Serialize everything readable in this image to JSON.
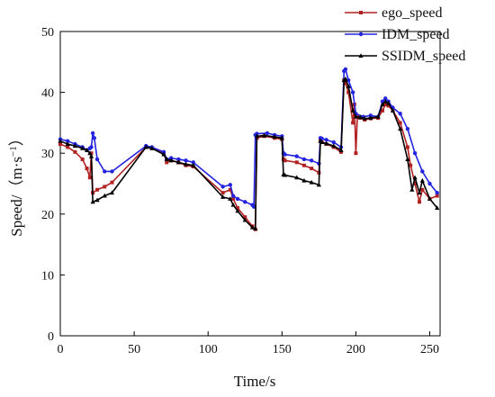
{
  "chart_data": {
    "type": "line",
    "xlabel": "Time/s",
    "ylabel_main": "Speed/（m·s",
    "ylabel_sup": "−1",
    "ylabel_close": "）",
    "xlim": [
      0,
      257
    ],
    "ylim": [
      0,
      50
    ],
    "xticks": [
      0,
      50,
      100,
      150,
      200,
      250
    ],
    "yticks": [
      0,
      10,
      20,
      30,
      40,
      50
    ],
    "legend_position": "top-right",
    "series": [
      {
        "name": "ego_speed",
        "color": "#b22222",
        "marker": "square",
        "x": [
          0,
          5,
          10,
          15,
          18,
          20,
          21,
          22,
          25,
          30,
          35,
          58,
          62,
          70,
          72,
          75,
          80,
          85,
          90,
          110,
          115,
          117,
          120,
          125,
          130,
          132,
          133,
          138,
          145,
          150,
          151,
          152,
          160,
          165,
          170,
          175,
          176,
          177,
          180,
          185,
          190,
          192,
          193,
          195,
          198,
          199,
          200,
          201,
          203,
          206,
          210,
          215,
          218,
          220,
          222,
          225,
          230,
          235,
          237,
          240,
          243,
          245,
          250,
          255
        ],
        "y": [
          31.5,
          31.0,
          30.2,
          29.0,
          27.5,
          26.0,
          30.0,
          23.5,
          24.0,
          24.5,
          25.2,
          31.0,
          30.8,
          30.0,
          28.5,
          28.8,
          28.5,
          28.0,
          27.8,
          23.5,
          24.0,
          22.5,
          21.0,
          19.5,
          18.0,
          17.5,
          32.5,
          32.8,
          32.5,
          32.3,
          29.0,
          28.8,
          28.5,
          28.0,
          27.5,
          26.8,
          32.0,
          31.8,
          31.5,
          31.0,
          30.2,
          42.0,
          41.5,
          40.0,
          35.0,
          38.0,
          30.0,
          36.0,
          35.8,
          35.5,
          35.7,
          35.8,
          37.0,
          38.0,
          37.8,
          37.0,
          35.0,
          31.0,
          28.0,
          25.0,
          22.0,
          24.0,
          22.5,
          23.0
        ]
      },
      {
        "name": "IDM_speed",
        "color": "#2323e0",
        "marker": "circle",
        "x": [
          0,
          5,
          10,
          15,
          18,
          20,
          21,
          22,
          23,
          25,
          30,
          35,
          58,
          62,
          70,
          72,
          75,
          80,
          85,
          90,
          110,
          115,
          117,
          120,
          125,
          130,
          131,
          132,
          133,
          140,
          145,
          150,
          151,
          152,
          160,
          165,
          170,
          175,
          176,
          177,
          180,
          185,
          190,
          192,
          193,
          195,
          198,
          200,
          205,
          210,
          215,
          218,
          220,
          222,
          225,
          230,
          235,
          240,
          245,
          250,
          255
        ],
        "y": [
          32.3,
          32.0,
          31.5,
          31.0,
          30.5,
          30.8,
          31.0,
          33.3,
          32.5,
          29.0,
          27.0,
          27.0,
          31.2,
          31.0,
          30.2,
          29.0,
          29.2,
          29.0,
          28.8,
          28.5,
          24.5,
          24.8,
          23.0,
          22.5,
          22.0,
          21.5,
          21.2,
          33.0,
          33.2,
          33.3,
          33.0,
          32.8,
          30.0,
          29.8,
          29.5,
          29.0,
          28.8,
          28.3,
          32.5,
          32.4,
          32.2,
          31.8,
          31.0,
          43.5,
          43.8,
          42.0,
          40.0,
          36.5,
          36.0,
          36.2,
          36.0,
          38.5,
          39.0,
          38.5,
          37.5,
          36.5,
          34.0,
          30.0,
          27.0,
          25.0,
          23.5
        ]
      },
      {
        "name": "SSIDM_speed",
        "color": "#000000",
        "marker": "triangle",
        "x": [
          0,
          5,
          10,
          15,
          18,
          20,
          21,
          22,
          25,
          30,
          35,
          58,
          62,
          70,
          72,
          75,
          80,
          85,
          90,
          110,
          115,
          117,
          120,
          125,
          130,
          132,
          133,
          138,
          145,
          150,
          151,
          152,
          160,
          165,
          170,
          175,
          176,
          177,
          180,
          185,
          190,
          192,
          193,
          195,
          198,
          200,
          203,
          206,
          210,
          215,
          218,
          220,
          222,
          225,
          230,
          235,
          238,
          240,
          243,
          245,
          250,
          255
        ],
        "y": [
          32.0,
          31.5,
          31.2,
          30.8,
          30.5,
          30.0,
          29.5,
          22.0,
          22.3,
          23.0,
          23.5,
          31.0,
          30.8,
          29.8,
          29.0,
          28.8,
          28.5,
          28.2,
          28.0,
          22.8,
          22.5,
          21.5,
          20.5,
          19.0,
          17.8,
          17.6,
          32.8,
          32.9,
          32.7,
          32.5,
          26.5,
          26.4,
          26.0,
          25.5,
          25.2,
          24.8,
          32.0,
          31.8,
          31.6,
          31.2,
          30.5,
          42.0,
          42.2,
          41.0,
          37.0,
          36.0,
          35.9,
          35.7,
          35.8,
          36.0,
          38.0,
          38.5,
          38.2,
          37.0,
          34.0,
          29.0,
          24.0,
          26.0,
          23.5,
          25.5,
          22.5,
          21.0
        ]
      }
    ]
  }
}
